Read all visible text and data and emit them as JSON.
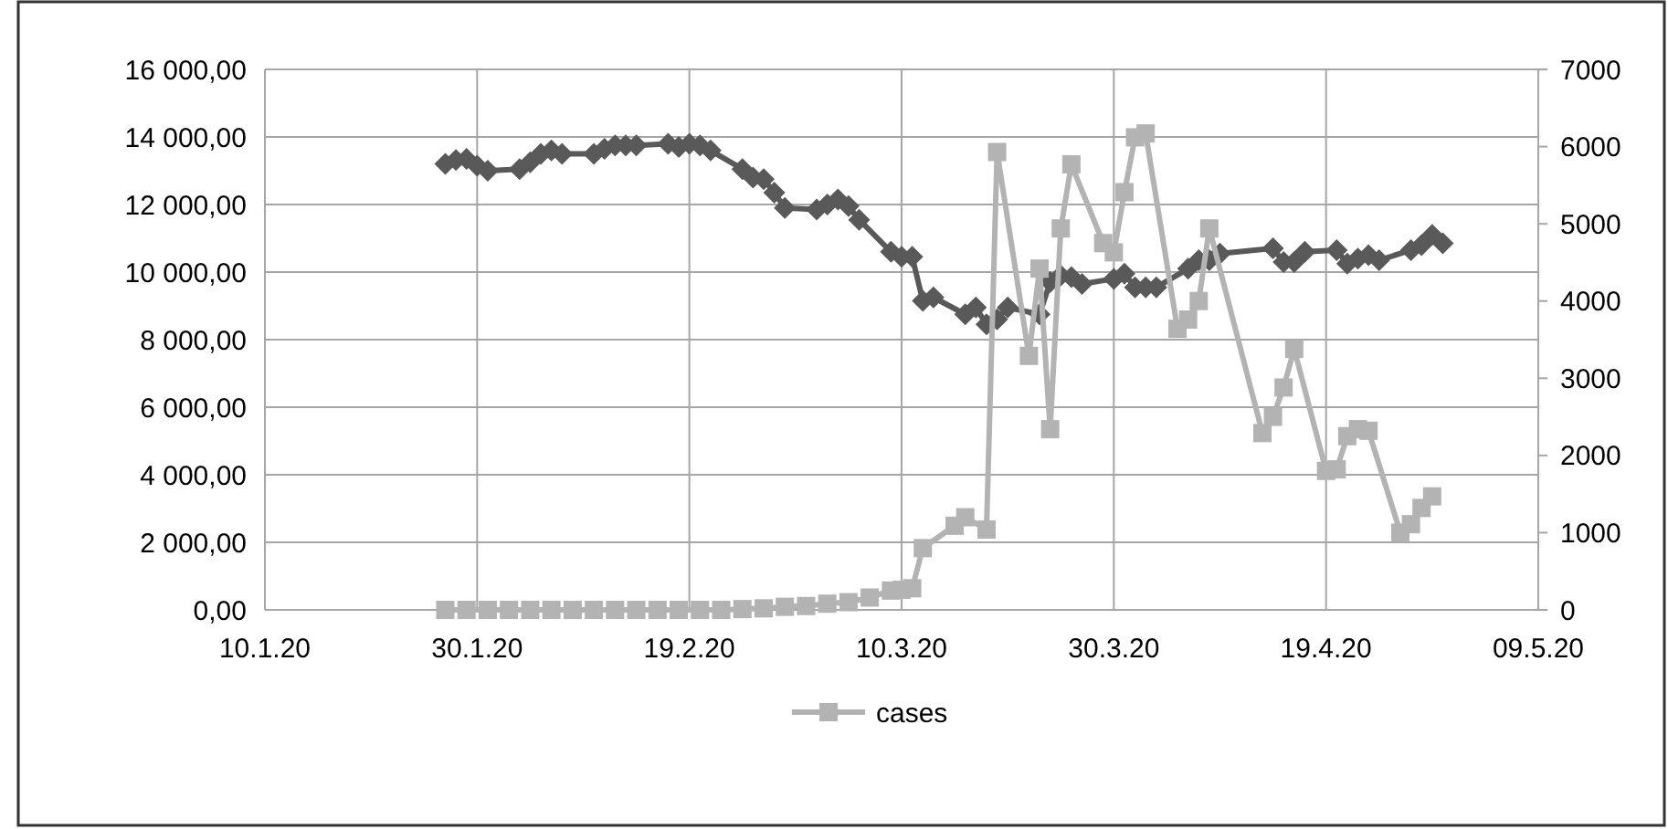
{
  "chart_data": {
    "type": "line",
    "x": [
      "2020-01-27",
      "2020-01-28",
      "2020-01-29",
      "2020-01-30",
      "2020-01-31",
      "2020-02-03",
      "2020-02-04",
      "2020-02-05",
      "2020-02-06",
      "2020-02-07",
      "2020-02-10",
      "2020-02-11",
      "2020-02-12",
      "2020-02-13",
      "2020-02-14",
      "2020-02-17",
      "2020-02-18",
      "2020-02-19",
      "2020-02-20",
      "2020-02-21",
      "2020-02-24",
      "2020-02-25",
      "2020-02-26",
      "2020-02-27",
      "2020-02-28",
      "2020-03-02",
      "2020-03-03",
      "2020-03-04",
      "2020-03-05",
      "2020-03-06",
      "2020-03-09",
      "2020-03-10",
      "2020-03-11",
      "2020-03-12",
      "2020-03-13",
      "2020-03-16",
      "2020-03-17",
      "2020-03-18",
      "2020-03-19",
      "2020-03-20",
      "2020-03-23",
      "2020-03-24",
      "2020-03-25",
      "2020-03-26",
      "2020-03-27",
      "2020-03-30",
      "2020-03-31",
      "2020-04-01",
      "2020-04-02",
      "2020-04-03",
      "2020-04-06",
      "2020-04-07",
      "2020-04-08",
      "2020-04-09",
      "2020-04-14",
      "2020-04-15",
      "2020-04-16",
      "2020-04-17",
      "2020-04-20",
      "2020-04-21",
      "2020-04-22",
      "2020-04-23",
      "2020-04-24",
      "2020-04-27",
      "2020-04-28",
      "2020-04-29",
      "2020-04-30"
    ],
    "series": [
      {
        "color": "#595959",
        "marker": "diamond",
        "values": [
          13200,
          13320,
          13350,
          13150,
          13000,
          13050,
          13250,
          13500,
          13600,
          13500,
          13500,
          13650,
          13750,
          13750,
          13750,
          13800,
          13700,
          13800,
          13750,
          13600,
          13050,
          12800,
          12750,
          12350,
          11900,
          11850,
          12000,
          12150,
          11950,
          11550,
          10600,
          10450,
          10450,
          9150,
          9250,
          8750,
          8950,
          8450,
          8600,
          8950,
          8750,
          9700,
          9900,
          9850,
          9650,
          9800,
          9950,
          9550,
          9550,
          9550,
          10100,
          10350,
          10350,
          10550,
          10700,
          10300,
          10300,
          10600,
          10650,
          10250,
          10400,
          10500,
          10350,
          10650,
          10800,
          11100,
          10850
        ]
      },
      {
        "name": "cases",
        "color": "#b3b3b3",
        "marker": "square",
        "axis": "y2",
        "x": [
          "2020-01-27",
          "2020-01-29",
          "2020-01-31",
          "2020-02-02",
          "2020-02-04",
          "2020-02-06",
          "2020-02-08",
          "2020-02-10",
          "2020-02-12",
          "2020-02-14",
          "2020-02-16",
          "2020-02-18",
          "2020-02-20",
          "2020-02-22",
          "2020-02-24",
          "2020-02-26",
          "2020-02-28",
          "2020-03-01",
          "2020-03-03",
          "2020-03-05",
          "2020-03-07",
          "2020-03-09",
          "2020-03-10",
          "2020-03-11",
          "2020-03-12",
          "2020-03-15",
          "2020-03-16",
          "2020-03-18",
          "2020-03-19",
          "2020-03-22",
          "2020-03-23",
          "2020-03-24",
          "2020-03-25",
          "2020-03-26",
          "2020-03-29",
          "2020-03-30",
          "2020-03-31",
          "2020-04-01",
          "2020-04-02",
          "2020-04-05",
          "2020-04-06",
          "2020-04-07",
          "2020-04-08",
          "2020-04-13",
          "2020-04-14",
          "2020-04-15",
          "2020-04-16",
          "2020-04-19",
          "2020-04-20",
          "2020-04-21",
          "2020-04-22",
          "2020-04-23",
          "2020-04-26",
          "2020-04-27",
          "2020-04-28",
          "2020-04-29"
        ],
        "values": [
          0,
          0,
          0,
          0,
          0,
          0,
          0,
          0,
          0,
          0,
          0,
          0,
          0,
          0,
          10,
          20,
          40,
          50,
          80,
          100,
          160,
          250,
          260,
          280,
          800,
          1090,
          1200,
          1040,
          5930,
          3290,
          4420,
          2340,
          4940,
          5770,
          4750,
          4630,
          5410,
          6120,
          6170,
          3640,
          3760,
          4000,
          4940,
          2290,
          2500,
          2880,
          3380,
          1800,
          1820,
          2250,
          2340,
          2320,
          1000,
          1110,
          1320,
          1470
        ]
      }
    ],
    "xlim": [
      "2020-01-10",
      "2020-05-09"
    ],
    "xticks": [
      {
        "value": "2020-01-10",
        "label": "10.1.20"
      },
      {
        "value": "2020-01-30",
        "label": "30.1.20"
      },
      {
        "value": "2020-02-19",
        "label": "19.2.20"
      },
      {
        "value": "2020-03-10",
        "label": "10.3.20"
      },
      {
        "value": "2020-03-30",
        "label": "30.3.20"
      },
      {
        "value": "2020-04-19",
        "label": "19.4.20"
      },
      {
        "value": "2020-05-09",
        "label": "09.5.20"
      }
    ],
    "ylim": [
      0,
      16000
    ],
    "yticks": [
      {
        "value": 0,
        "label": "0,00"
      },
      {
        "value": 2000,
        "label": "2 000,00"
      },
      {
        "value": 4000,
        "label": "4 000,00"
      },
      {
        "value": 6000,
        "label": "6 000,00"
      },
      {
        "value": 8000,
        "label": "8 000,00"
      },
      {
        "value": 10000,
        "label": "10 000,00"
      },
      {
        "value": 12000,
        "label": "12 000,00"
      },
      {
        "value": 14000,
        "label": "14 000,00"
      },
      {
        "value": 16000,
        "label": "16 000,00"
      }
    ],
    "y2lim": [
      0,
      7000
    ],
    "y2ticks": [
      0,
      1000,
      2000,
      3000,
      4000,
      5000,
      6000,
      7000
    ],
    "grid": true,
    "legend": "bottom",
    "line_style": "solid"
  }
}
